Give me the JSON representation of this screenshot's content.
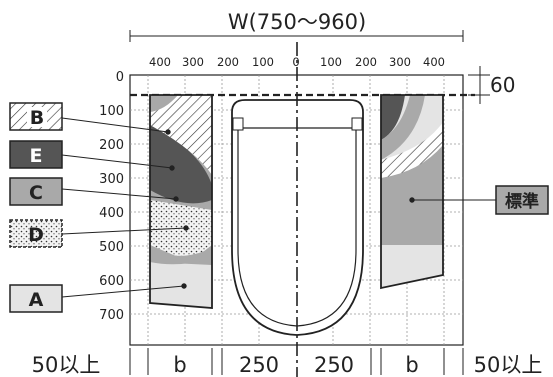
{
  "diagram": {
    "width_label": "W(750〜960)",
    "x_ticks": [
      "400",
      "300",
      "200",
      "100",
      "0",
      "100",
      "200",
      "300",
      "400"
    ],
    "y_ticks": [
      "0",
      "100",
      "200",
      "300",
      "400",
      "500",
      "600",
      "700"
    ],
    "top_gap_value": "60",
    "zones": {
      "B": "B",
      "E": "E",
      "C": "C",
      "D": "D",
      "A": "A",
      "standard": "標準"
    },
    "bottom_dims": {
      "left_margin": "50以上",
      "left_b": "b",
      "left_center": "250",
      "right_center": "250",
      "right_b": "b",
      "right_margin": "50以上"
    },
    "colors": {
      "zone_A": "#e4e4e4",
      "zone_C": "#a9a9a9",
      "zone_E": "#555555",
      "outline": "#222222"
    }
  }
}
